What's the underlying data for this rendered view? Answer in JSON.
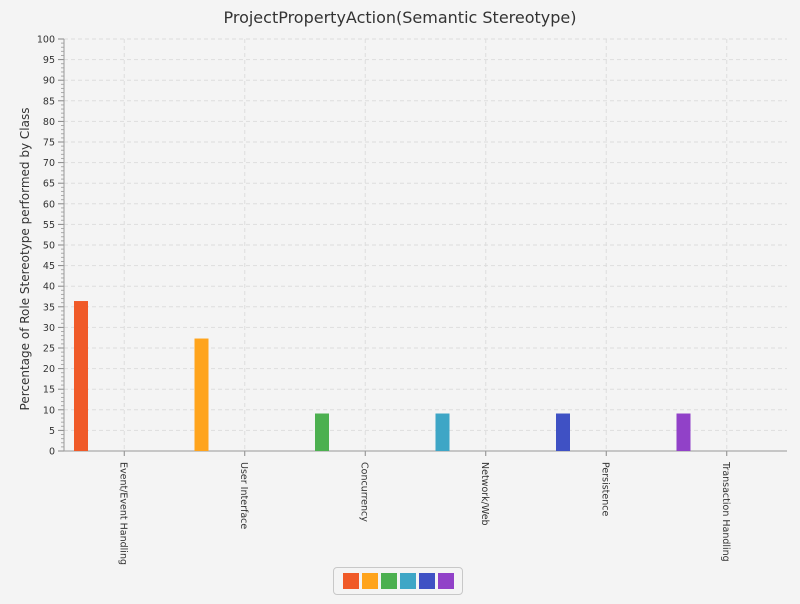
{
  "chart_data": {
    "type": "bar",
    "title": "ProjectPropertyAction(Semantic Stereotype)",
    "ylabel": "Percentage of Role Stereotype performed by Class",
    "xlabel": "",
    "categories": [
      "Event/Event Handling",
      "User Interface",
      "Concurrency",
      "Network/Web",
      "Persistence",
      "Transaction Handling"
    ],
    "values": [
      36.4,
      27.3,
      9.1,
      9.1,
      9.1,
      9.1
    ],
    "colors": [
      "#f05a28",
      "#ffa41c",
      "#4cb050",
      "#3ea6c6",
      "#3f51c4",
      "#9141c8"
    ],
    "ylim": [
      0,
      100
    ],
    "y_major_step": 5,
    "y_minor_step": 1,
    "grid": true,
    "legend": "bottom-center"
  }
}
